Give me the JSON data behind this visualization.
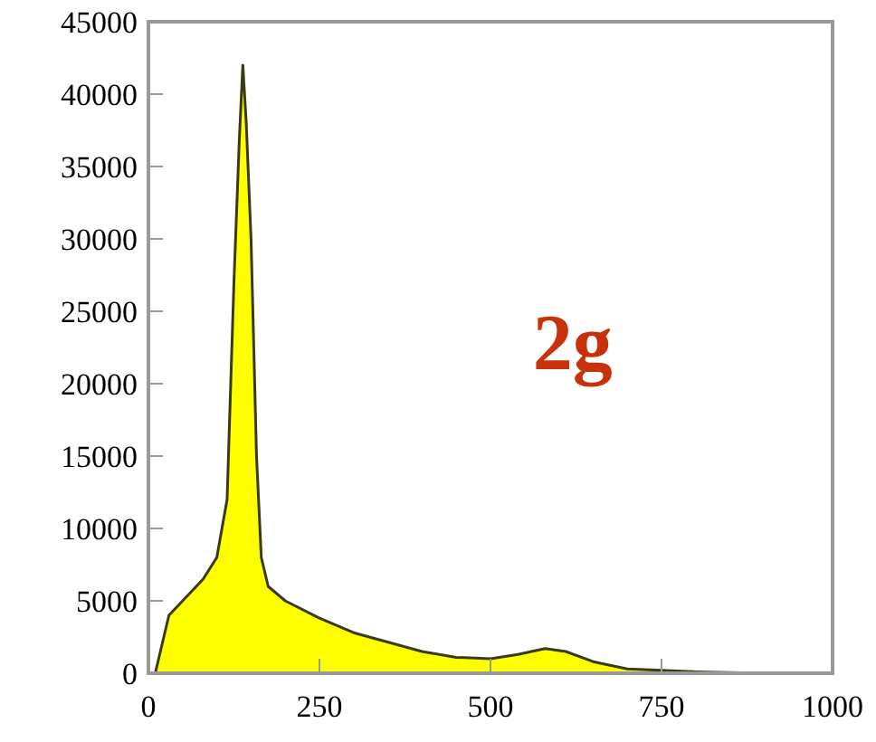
{
  "chart_data": {
    "type": "area",
    "annotations": [
      "2g"
    ],
    "x": [
      0,
      10,
      30,
      50,
      80,
      100,
      115,
      125,
      133,
      138,
      143,
      150,
      158,
      165,
      175,
      200,
      250,
      300,
      400,
      450,
      500,
      540,
      580,
      610,
      650,
      700,
      750,
      800,
      900,
      1000
    ],
    "series": [
      {
        "color": "#ffff00",
        "values": [
          0,
          0,
          4000,
          5000,
          6500,
          8000,
          12000,
          27000,
          37000,
          42000,
          38000,
          30000,
          15000,
          8000,
          6000,
          5000,
          3800,
          2800,
          1500,
          1100,
          1000,
          1300,
          1700,
          1500,
          800,
          300,
          200,
          100,
          0,
          0
        ]
      }
    ],
    "xlim": [
      0,
      1000
    ],
    "xticks": [
      0,
      250,
      500,
      750,
      1000
    ],
    "ylim": [
      0,
      45000
    ],
    "yticks": [
      0,
      5000,
      10000,
      15000,
      20000,
      25000,
      30000,
      35000,
      40000,
      45000
    ],
    "grid": false
  }
}
